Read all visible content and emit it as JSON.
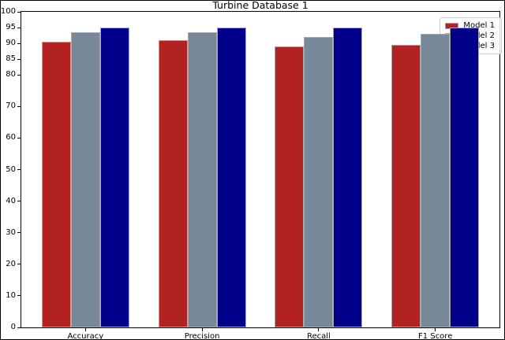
{
  "figure": {
    "background": "#ffffff",
    "border_color": "#000000"
  },
  "chart_data": {
    "type": "bar",
    "title": "Turbine Database 1",
    "xlabel": "",
    "ylabel": "",
    "categories": [
      "Accuracy",
      "Precision",
      "Recall",
      "F1 Score"
    ],
    "series": [
      {
        "name": "Model 1",
        "color": "#B22222",
        "values": [
          90.5,
          91,
          89,
          89.5
        ]
      },
      {
        "name": "Model 2",
        "color": "#778899",
        "values": [
          93.5,
          93.5,
          92,
          93
        ]
      },
      {
        "name": "Model 3",
        "color": "#00008B",
        "values": [
          95,
          95,
          95,
          95
        ]
      }
    ],
    "ylim": [
      0,
      100
    ],
    "yticks": [
      0,
      10,
      20,
      30,
      40,
      50,
      60,
      70,
      80,
      85,
      90,
      95,
      100
    ],
    "grid": false,
    "bar_edge_color": "#A9A9A9",
    "legend": {
      "position": "upper right",
      "labels": [
        "Model 1",
        "Model 2",
        "Model 3"
      ]
    }
  }
}
